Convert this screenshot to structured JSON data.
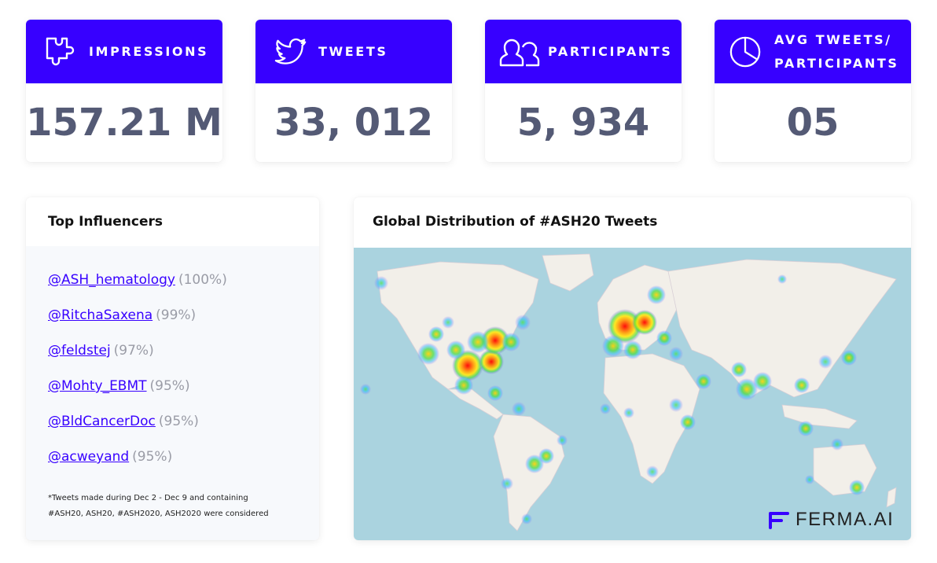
{
  "stats": [
    {
      "label": "IMPRESSIONS",
      "value": "157.21 M",
      "icon": "puzzle-icon"
    },
    {
      "label": "TWEETS",
      "value": "33, 012",
      "icon": "twitter-bird-icon"
    },
    {
      "label": "PARTICIPANTS",
      "value": "5, 934",
      "icon": "people-icon"
    },
    {
      "label_line1": "AVG TWEETS/",
      "label_line2": "PARTICIPANTS",
      "value": "05",
      "icon": "pie-chart-icon"
    }
  ],
  "influencers": {
    "title": "Top Influencers",
    "items": [
      {
        "handle": "@ASH_hematology",
        "pct": "(100%)"
      },
      {
        "handle": "@RitchaSaxena",
        "pct": "(99%)"
      },
      {
        "handle": "@feldstej",
        "pct": "(97%)"
      },
      {
        "handle": "@Mohty_EBMT",
        "pct": "(95%)"
      },
      {
        "handle": "@BldCancerDoc",
        "pct": "(95%)"
      },
      {
        "handle": "@acweyand",
        "pct": "(95%)"
      }
    ],
    "note_line1": "*Tweets made during Dec 2 - Dec 9 and containing",
    "note_line2": "#ASH20, ASH20, #ASH2020, ASH2020 were considered"
  },
  "map": {
    "title": "Global Distribution of #ASH20 Tweets",
    "brand": "FERMA.AI",
    "colors": {
      "ocean": "#aad3df",
      "land": "#f2efe9",
      "accent": "#3700ff",
      "value": "#545a75"
    }
  }
}
